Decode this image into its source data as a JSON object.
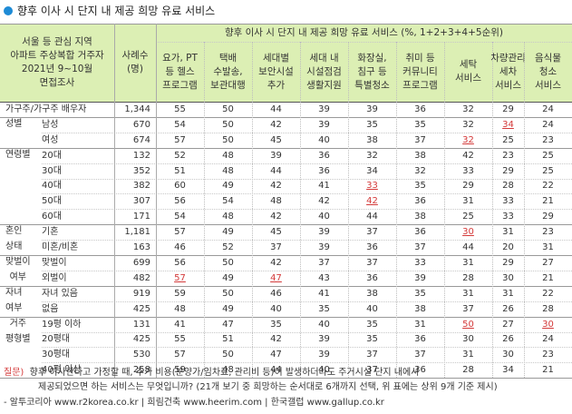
{
  "title": "향후 이사 시 단지 내 제공 희망 유료 서비스",
  "header": {
    "survey_lines": [
      "서울 등 관심 지역",
      "아파트 주상복합 거주자",
      "2021년 9~10월",
      "면접조사"
    ],
    "cases_lines": [
      "사례수",
      "(명)"
    ],
    "group_title": "향후 이사 시 단지 내 제공 희망 유료 서비스 (%, 1+2+3+4+5순위)",
    "columns": [
      [
        "요가, PT",
        "등 헬스",
        "프로그램"
      ],
      [
        "택배",
        "수발송,",
        "보관대행"
      ],
      [
        "세대별",
        "보안시설",
        "추가"
      ],
      [
        "세대 내",
        "시설점검",
        "생활지원"
      ],
      [
        "화장실,",
        "침구 등",
        "특별청소"
      ],
      [
        "취미 등",
        "커뮤니티",
        "프로그램"
      ],
      [
        "세탁",
        "서비스"
      ],
      [
        "차량관리",
        "세차",
        "서비스"
      ],
      [
        "음식물",
        "청소",
        "서비스"
      ]
    ]
  },
  "groups": [
    {
      "label": [
        ""
      ],
      "rows": [
        {
          "sub": "가구주/가구주 배우자",
          "n": "1,344",
          "v": [
            "55",
            "50",
            "44",
            "39",
            "39",
            "36",
            "32",
            "29",
            "24"
          ]
        }
      ]
    },
    {
      "label": [
        "성별"
      ],
      "rows": [
        {
          "sub": "남성",
          "n": "670",
          "v": [
            "54",
            "50",
            "42",
            "39",
            "35",
            "35",
            "32",
            "34",
            "24"
          ]
        },
        {
          "sub": "여성",
          "n": "674",
          "v": [
            "57",
            "50",
            "45",
            "40",
            "38",
            "37",
            "32",
            "25",
            "23"
          ]
        }
      ]
    },
    {
      "label": [
        "연령별"
      ],
      "rows": [
        {
          "sub": "20대",
          "n": "132",
          "v": [
            "52",
            "48",
            "39",
            "36",
            "32",
            "38",
            "42",
            "23",
            "25"
          ]
        },
        {
          "sub": "30대",
          "n": "352",
          "v": [
            "51",
            "48",
            "44",
            "36",
            "34",
            "32",
            "33",
            "29",
            "25"
          ]
        },
        {
          "sub": "40대",
          "n": "382",
          "v": [
            "60",
            "49",
            "42",
            "41",
            "33",
            "35",
            "29",
            "28",
            "22"
          ]
        },
        {
          "sub": "50대",
          "n": "307",
          "v": [
            "56",
            "54",
            "48",
            "42",
            "42",
            "36",
            "31",
            "33",
            "21"
          ]
        },
        {
          "sub": "60대",
          "n": "171",
          "v": [
            "54",
            "48",
            "42",
            "40",
            "44",
            "38",
            "25",
            "33",
            "29"
          ]
        }
      ]
    },
    {
      "label": [
        "혼인",
        "상태"
      ],
      "rows": [
        {
          "sub": "기혼",
          "n": "1,181",
          "v": [
            "57",
            "49",
            "45",
            "39",
            "37",
            "36",
            "30",
            "31",
            "23"
          ]
        },
        {
          "sub": "미혼/비혼",
          "n": "163",
          "v": [
            "46",
            "52",
            "37",
            "39",
            "36",
            "37",
            "44",
            "20",
            "31"
          ]
        }
      ]
    },
    {
      "label": [
        "맞벌이",
        "여부"
      ],
      "rows": [
        {
          "sub": "맞벌이",
          "n": "699",
          "v": [
            "56",
            "50",
            "42",
            "37",
            "37",
            "33",
            "31",
            "29",
            "27"
          ]
        },
        {
          "sub": "외벌이",
          "n": "482",
          "v": [
            "57",
            "49",
            "47",
            "43",
            "36",
            "39",
            "28",
            "30",
            "21"
          ]
        }
      ]
    },
    {
      "label": [
        "자녀",
        "여부"
      ],
      "rows": [
        {
          "sub": "자녀 있음",
          "n": "919",
          "v": [
            "59",
            "50",
            "46",
            "41",
            "38",
            "35",
            "31",
            "31",
            "22"
          ]
        },
        {
          "sub": "없음",
          "n": "425",
          "v": [
            "48",
            "49",
            "40",
            "35",
            "40",
            "38",
            "37",
            "26",
            "28"
          ]
        }
      ]
    },
    {
      "label": [
        "거주",
        "평형별"
      ],
      "rows": [
        {
          "sub": "19평 이하",
          "n": "131",
          "v": [
            "41",
            "47",
            "35",
            "40",
            "35",
            "31",
            "50",
            "27",
            "30"
          ]
        },
        {
          "sub": "20평대",
          "n": "425",
          "v": [
            "55",
            "51",
            "42",
            "39",
            "35",
            "36",
            "30",
            "26",
            "24"
          ]
        },
        {
          "sub": "30평대",
          "n": "530",
          "v": [
            "57",
            "50",
            "47",
            "39",
            "37",
            "37",
            "31",
            "30",
            "23"
          ]
        },
        {
          "sub": "40평 이상",
          "n": "258",
          "v": [
            "59",
            "48",
            "44",
            "40",
            "37",
            "36",
            "28",
            "34",
            "21"
          ]
        }
      ]
    }
  ],
  "highlights": [
    [
      1,
      7
    ],
    [
      2,
      6
    ],
    [
      5,
      4
    ],
    [
      6,
      4
    ],
    [
      8,
      6
    ],
    [
      11,
      0
    ],
    [
      11,
      2
    ],
    [
      14,
      6
    ],
    [
      14,
      8
    ]
  ],
  "footer": {
    "q_label": "질문)",
    "q_line1": "향후 이사한다고 가정할 때, 추가 비용(분양가/임차료, 관리비 등)이 발생하더라도 주거시설 단지 내에서",
    "q_line2": "제공되었으면 하는 서비스는 무엇입니까? (21개 보기 중 희망하는 순서대로 6개까지 선택, 위 표에는 상위 9개 기준 제시)",
    "source": "- 알투코리아 www.r2korea.co.kr | 희림건축 www.heerim.com | 한국갤럽 www.gallup.co.kr"
  },
  "colors": {
    "header_bg": "#dcefb4",
    "highlight": "#d43a3a",
    "bullet": "#1e8bd6"
  }
}
